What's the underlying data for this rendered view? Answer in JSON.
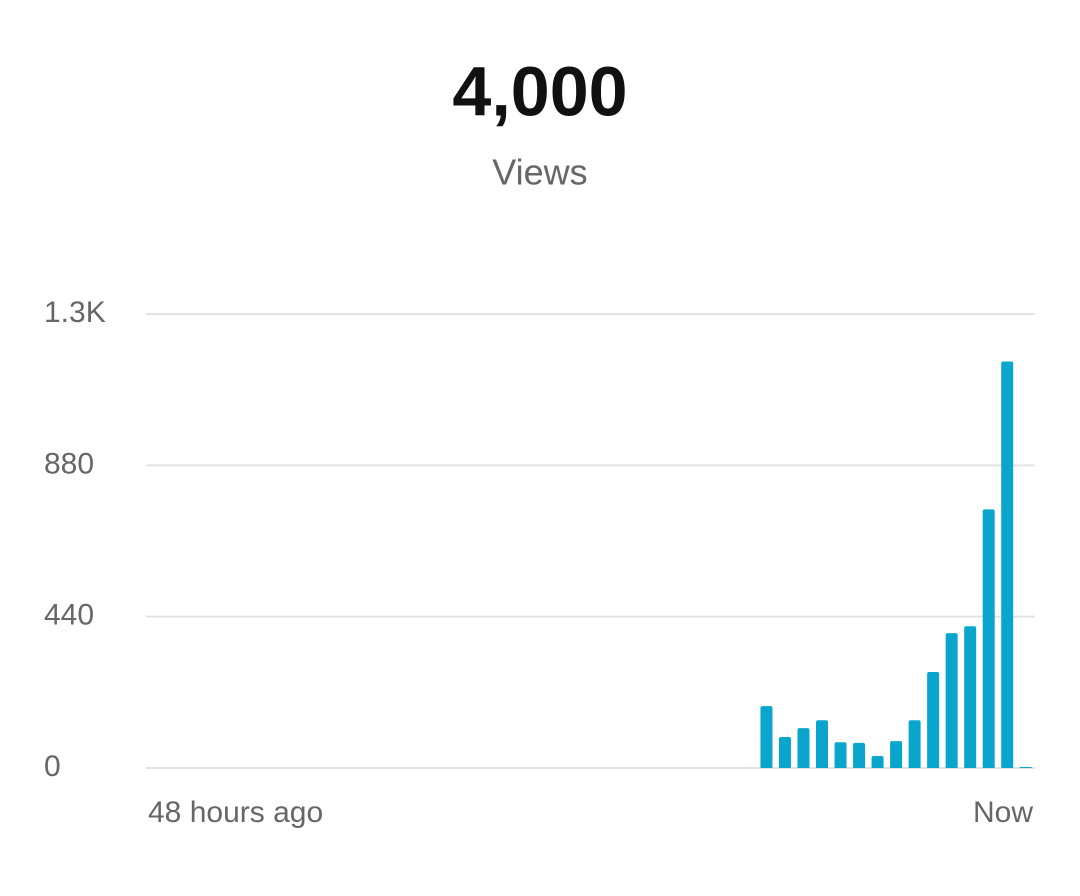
{
  "chart_data": {
    "type": "bar",
    "title": "4,000",
    "subtitle": "Views",
    "categories": [
      "48 hours ago",
      null,
      null,
      null,
      null,
      null,
      null,
      null,
      null,
      null,
      null,
      null,
      null,
      null,
      null,
      null,
      null,
      null,
      null,
      null,
      null,
      null,
      null,
      null,
      null,
      null,
      null,
      null,
      null,
      null,
      null,
      null,
      null,
      null,
      null,
      null,
      null,
      null,
      null,
      null,
      null,
      null,
      null,
      null,
      null,
      null,
      null,
      "Now"
    ],
    "values": [
      0,
      0,
      0,
      0,
      0,
      0,
      0,
      0,
      0,
      0,
      0,
      0,
      0,
      0,
      0,
      0,
      0,
      0,
      0,
      0,
      0,
      0,
      0,
      0,
      0,
      0,
      0,
      0,
      0,
      0,
      0,
      0,
      0,
      180,
      90,
      116,
      139,
      75,
      73,
      35,
      78,
      139,
      279,
      392,
      412,
      752,
      1182,
      3
    ],
    "color": "#0aa5cc",
    "ylim": [
      0,
      1320
    ],
    "yticks": [
      0,
      440,
      880,
      {
        "value": 1320,
        "label": "1.3K"
      }
    ],
    "grid": true
  }
}
